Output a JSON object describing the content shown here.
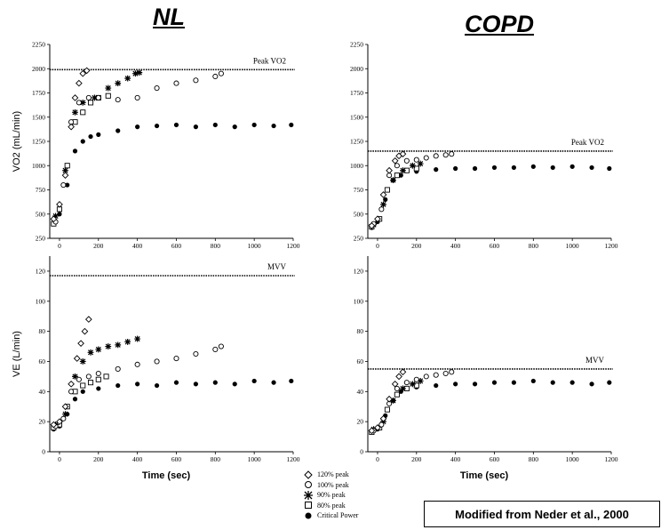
{
  "headers": {
    "left": "NL",
    "right": "COPD"
  },
  "credit": "Modified from Neder et al., 2000",
  "legend": [
    {
      "label": "120% peak",
      "marker": "diamond"
    },
    {
      "label": "100% peak",
      "marker": "circle-open"
    },
    {
      "label": "90% peak",
      "marker": "star"
    },
    {
      "label": "80% peak",
      "marker": "square-open"
    },
    {
      "label": "Critical Power",
      "marker": "circle-filled"
    }
  ],
  "chart_data": [
    {
      "id": "nl-vo2",
      "type": "scatter",
      "title": "NL",
      "xlabel": "",
      "ylabel": "VO2 (mL/min)",
      "xlim": [
        -50,
        1200
      ],
      "ylim": [
        250,
        2250
      ],
      "xticks": [
        0,
        200,
        400,
        600,
        800,
        1000,
        1200
      ],
      "yticks": [
        250,
        500,
        750,
        1000,
        1250,
        1500,
        1750,
        2000,
        2250
      ],
      "reference_line": {
        "label": "Peak VO2",
        "y": 1990
      },
      "series": [
        {
          "name": "120% peak",
          "marker": "diamond",
          "points": [
            [
              -30,
              450
            ],
            [
              0,
              600
            ],
            [
              30,
              900
            ],
            [
              60,
              1400
            ],
            [
              80,
              1700
            ],
            [
              100,
              1850
            ],
            [
              120,
              1950
            ],
            [
              140,
              1980
            ]
          ]
        },
        {
          "name": "100% peak",
          "marker": "circle-open",
          "points": [
            [
              -20,
              420
            ],
            [
              20,
              800
            ],
            [
              60,
              1450
            ],
            [
              100,
              1650
            ],
            [
              150,
              1700
            ],
            [
              200,
              1700
            ],
            [
              300,
              1680
            ],
            [
              400,
              1700
            ],
            [
              500,
              1800
            ],
            [
              600,
              1850
            ],
            [
              700,
              1880
            ],
            [
              800,
              1920
            ],
            [
              830,
              1950
            ]
          ]
        },
        {
          "name": "90% peak",
          "marker": "star",
          "points": [
            [
              -20,
              480
            ],
            [
              30,
              950
            ],
            [
              80,
              1550
            ],
            [
              120,
              1650
            ],
            [
              180,
              1700
            ],
            [
              250,
              1800
            ],
            [
              300,
              1850
            ],
            [
              350,
              1900
            ],
            [
              390,
              1950
            ],
            [
              410,
              1960
            ]
          ]
        },
        {
          "name": "80% peak",
          "marker": "square-open",
          "points": [
            [
              -30,
              400
            ],
            [
              0,
              550
            ],
            [
              40,
              1000
            ],
            [
              80,
              1450
            ],
            [
              120,
              1550
            ],
            [
              160,
              1650
            ],
            [
              200,
              1700
            ],
            [
              250,
              1720
            ]
          ]
        },
        {
          "name": "Critical Power",
          "marker": "circle-filled",
          "points": [
            [
              -30,
              400
            ],
            [
              0,
              500
            ],
            [
              40,
              800
            ],
            [
              80,
              1150
            ],
            [
              120,
              1250
            ],
            [
              160,
              1300
            ],
            [
              200,
              1320
            ],
            [
              300,
              1360
            ],
            [
              400,
              1400
            ],
            [
              500,
              1410
            ],
            [
              600,
              1420
            ],
            [
              700,
              1400
            ],
            [
              800,
              1420
            ],
            [
              900,
              1400
            ],
            [
              1000,
              1420
            ],
            [
              1100,
              1410
            ],
            [
              1190,
              1420
            ]
          ]
        }
      ]
    },
    {
      "id": "copd-vo2",
      "type": "scatter",
      "title": "COPD",
      "xlabel": "",
      "ylabel": "",
      "xlim": [
        -50,
        1200
      ],
      "ylim": [
        250,
        2250
      ],
      "xticks": [
        0,
        200,
        400,
        600,
        800,
        1000,
        1200
      ],
      "yticks": [
        250,
        500,
        750,
        1000,
        1250,
        1500,
        1750,
        2000,
        2250
      ],
      "reference_line": {
        "label": "Peak VO2",
        "y": 1150
      },
      "series": [
        {
          "name": "120% peak",
          "marker": "diamond",
          "points": [
            [
              -30,
              380
            ],
            [
              0,
              450
            ],
            [
              30,
              700
            ],
            [
              60,
              950
            ],
            [
              90,
              1050
            ],
            [
              110,
              1100
            ],
            [
              130,
              1120
            ]
          ]
        },
        {
          "name": "100% peak",
          "marker": "circle-open",
          "points": [
            [
              -20,
              400
            ],
            [
              20,
              550
            ],
            [
              60,
              900
            ],
            [
              100,
              1000
            ],
            [
              150,
              1050
            ],
            [
              200,
              1060
            ],
            [
              250,
              1080
            ],
            [
              300,
              1100
            ],
            [
              350,
              1110
            ],
            [
              380,
              1120
            ]
          ]
        },
        {
          "name": "90% peak",
          "marker": "star",
          "points": [
            [
              -20,
              390
            ],
            [
              30,
              600
            ],
            [
              80,
              850
            ],
            [
              130,
              950
            ],
            [
              180,
              1000
            ],
            [
              220,
              1020
            ]
          ]
        },
        {
          "name": "80% peak",
          "marker": "square-open",
          "points": [
            [
              -30,
              370
            ],
            [
              10,
              450
            ],
            [
              50,
              750
            ],
            [
              100,
              900
            ],
            [
              150,
              950
            ],
            [
              200,
              970
            ]
          ]
        },
        {
          "name": "Critical Power",
          "marker": "circle-filled",
          "points": [
            [
              -30,
              360
            ],
            [
              0,
              420
            ],
            [
              40,
              650
            ],
            [
              80,
              850
            ],
            [
              120,
              900
            ],
            [
              200,
              940
            ],
            [
              300,
              960
            ],
            [
              400,
              970
            ],
            [
              500,
              970
            ],
            [
              600,
              980
            ],
            [
              700,
              980
            ],
            [
              800,
              990
            ],
            [
              900,
              980
            ],
            [
              1000,
              990
            ],
            [
              1100,
              980
            ],
            [
              1190,
              970
            ]
          ]
        }
      ]
    },
    {
      "id": "nl-ve",
      "type": "scatter",
      "title": "",
      "xlabel": "Time (sec)",
      "ylabel": "VE (L/min)",
      "xlim": [
        -50,
        1200
      ],
      "ylim": [
        0,
        130
      ],
      "xticks": [
        0,
        200,
        400,
        600,
        800,
        1000,
        1200
      ],
      "yticks": [
        0,
        20,
        40,
        60,
        80,
        100,
        120
      ],
      "reference_line": {
        "label": "MVV",
        "y": 117
      },
      "series": [
        {
          "name": "120% peak",
          "marker": "diamond",
          "points": [
            [
              -30,
              18
            ],
            [
              0,
              20
            ],
            [
              30,
              30
            ],
            [
              60,
              45
            ],
            [
              90,
              62
            ],
            [
              110,
              72
            ],
            [
              130,
              80
            ],
            [
              150,
              88
            ]
          ]
        },
        {
          "name": "100% peak",
          "marker": "circle-open",
          "points": [
            [
              -20,
              17
            ],
            [
              20,
              22
            ],
            [
              60,
              40
            ],
            [
              100,
              48
            ],
            [
              150,
              50
            ],
            [
              200,
              52
            ],
            [
              300,
              55
            ],
            [
              400,
              58
            ],
            [
              500,
              60
            ],
            [
              600,
              62
            ],
            [
              700,
              65
            ],
            [
              800,
              68
            ],
            [
              830,
              70
            ]
          ]
        },
        {
          "name": "90% peak",
          "marker": "star",
          "points": [
            [
              -20,
              18
            ],
            [
              30,
              25
            ],
            [
              80,
              50
            ],
            [
              120,
              60
            ],
            [
              160,
              66
            ],
            [
              200,
              68
            ],
            [
              250,
              70
            ],
            [
              300,
              71
            ],
            [
              350,
              73
            ],
            [
              400,
              75
            ]
          ]
        },
        {
          "name": "80% peak",
          "marker": "square-open",
          "points": [
            [
              -30,
              16
            ],
            [
              0,
              18
            ],
            [
              40,
              30
            ],
            [
              80,
              40
            ],
            [
              120,
              44
            ],
            [
              160,
              46
            ],
            [
              200,
              48
            ],
            [
              240,
              50
            ]
          ]
        },
        {
          "name": "Critical Power",
          "marker": "circle-filled",
          "points": [
            [
              -30,
              15
            ],
            [
              0,
              17
            ],
            [
              40,
              25
            ],
            [
              80,
              35
            ],
            [
              120,
              40
            ],
            [
              200,
              42
            ],
            [
              300,
              44
            ],
            [
              400,
              45
            ],
            [
              500,
              44
            ],
            [
              600,
              46
            ],
            [
              700,
              45
            ],
            [
              800,
              46
            ],
            [
              900,
              45
            ],
            [
              1000,
              47
            ],
            [
              1100,
              46
            ],
            [
              1190,
              47
            ]
          ]
        }
      ]
    },
    {
      "id": "copd-ve",
      "type": "scatter",
      "title": "",
      "xlabel": "Time (sec)",
      "ylabel": "",
      "xlim": [
        -50,
        1200
      ],
      "ylim": [
        0,
        130
      ],
      "xticks": [
        0,
        200,
        400,
        600,
        800,
        1000,
        1200
      ],
      "yticks": [
        0,
        20,
        40,
        60,
        80,
        100,
        120
      ],
      "reference_line": {
        "label": "MVV",
        "y": 55
      },
      "series": [
        {
          "name": "120% peak",
          "marker": "diamond",
          "points": [
            [
              -30,
              14
            ],
            [
              0,
              16
            ],
            [
              30,
              22
            ],
            [
              60,
              35
            ],
            [
              90,
              45
            ],
            [
              110,
              50
            ],
            [
              130,
              53
            ]
          ]
        },
        {
          "name": "100% peak",
          "marker": "circle-open",
          "points": [
            [
              -20,
              14
            ],
            [
              20,
              18
            ],
            [
              60,
              32
            ],
            [
              100,
              42
            ],
            [
              150,
              46
            ],
            [
              200,
              48
            ],
            [
              250,
              50
            ],
            [
              300,
              51
            ],
            [
              350,
              52
            ],
            [
              380,
              53
            ]
          ]
        },
        {
          "name": "90% peak",
          "marker": "star",
          "points": [
            [
              -20,
              15
            ],
            [
              30,
              20
            ],
            [
              80,
              34
            ],
            [
              130,
              42
            ],
            [
              180,
              45
            ],
            [
              220,
              47
            ]
          ]
        },
        {
          "name": "80% peak",
          "marker": "square-open",
          "points": [
            [
              -30,
              13
            ],
            [
              10,
              16
            ],
            [
              50,
              28
            ],
            [
              100,
              38
            ],
            [
              150,
              42
            ],
            [
              200,
              44
            ]
          ]
        },
        {
          "name": "Critical Power",
          "marker": "circle-filled",
          "points": [
            [
              -30,
              13
            ],
            [
              0,
              15
            ],
            [
              40,
              24
            ],
            [
              80,
              34
            ],
            [
              120,
              40
            ],
            [
              200,
              43
            ],
            [
              300,
              44
            ],
            [
              400,
              45
            ],
            [
              500,
              45
            ],
            [
              600,
              46
            ],
            [
              700,
              46
            ],
            [
              800,
              47
            ],
            [
              900,
              46
            ],
            [
              1000,
              46
            ],
            [
              1100,
              45
            ],
            [
              1190,
              46
            ]
          ]
        }
      ]
    }
  ]
}
